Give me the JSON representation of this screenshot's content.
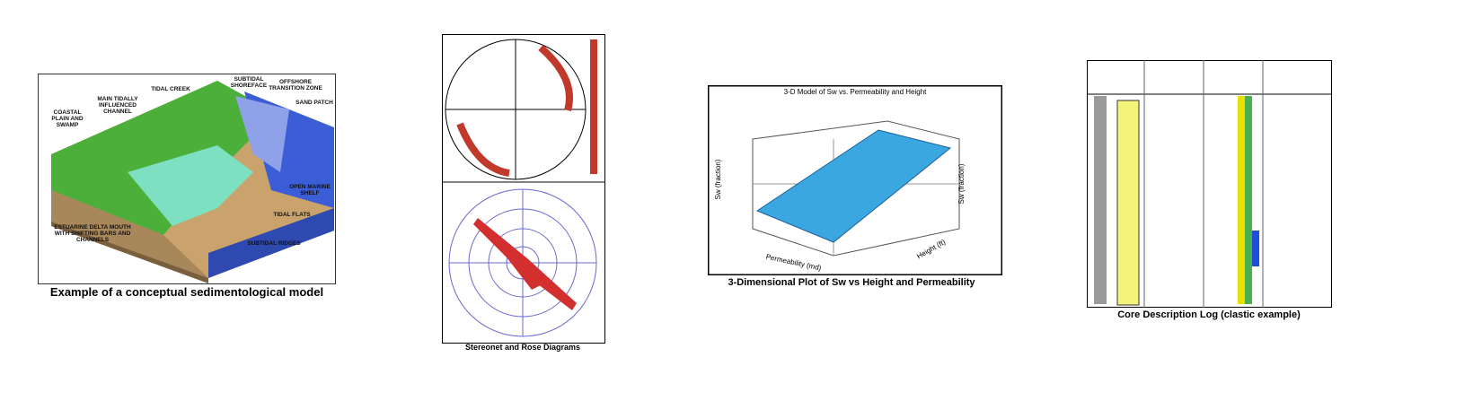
{
  "figures": [
    {
      "caption": "Example of a conceptual sedimentological model",
      "labels": [
        "COASTAL PLAIN AND SWAMP",
        "MAIN TIDALLY INFLUENCED CHANNEL",
        "TIDAL CREEK",
        "SUBTIDAL SHOREFACE",
        "OFFSHORE TRANSITION ZONE",
        "SAND PATCH",
        "OPEN MARINE SHELF",
        "TIDAL FLATS",
        "SUBTIDAL RIDGES",
        "ESTUARINE DELTA MOUTH WITH SHIFTING BARS AND CHANNELS"
      ]
    },
    {
      "caption": "Stereonet and Rose Diagrams"
    },
    {
      "caption": "3-Dimensional Plot of Sw vs Height and Permeability",
      "title": "3-D Model of Sw vs. Permeability and Height",
      "axis_labels": [
        "Sw (fraction)",
        "Permeability (md)",
        "Height (ft)",
        "Sw (fraction)"
      ]
    },
    {
      "caption": "Core Description Log (clastic example)"
    }
  ]
}
